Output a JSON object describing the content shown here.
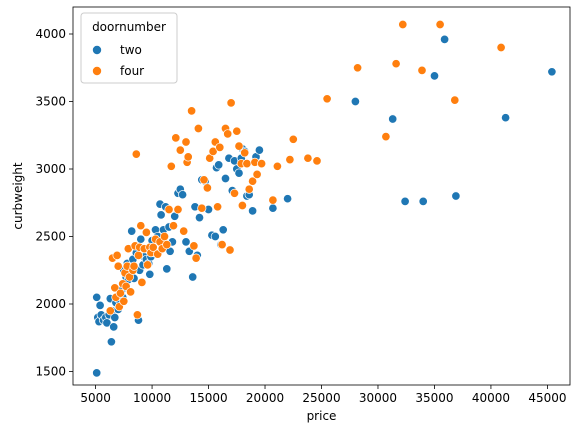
{
  "chart_data": {
    "type": "scatter",
    "xlabel": "price",
    "ylabel": "curbweight",
    "xlim": [
      3000,
      47000
    ],
    "ylim": [
      1400,
      4200
    ],
    "xticks": [
      5000,
      10000,
      15000,
      20000,
      25000,
      30000,
      35000,
      40000,
      45000
    ],
    "yticks": [
      1500,
      2000,
      2500,
      3000,
      3500,
      4000
    ],
    "grid": false,
    "legend": {
      "title": "doornumber",
      "placement": "top-left",
      "entries": [
        {
          "label": "two",
          "color": "#1f77b4"
        },
        {
          "label": "four",
          "color": "#ff7f0e"
        }
      ]
    },
    "series": [
      {
        "name": "two",
        "color": "#1f77b4",
        "points": [
          [
            5100,
            1490
          ],
          [
            5100,
            2050
          ],
          [
            5200,
            1900
          ],
          [
            5300,
            1870
          ],
          [
            5400,
            1990
          ],
          [
            5500,
            1920
          ],
          [
            5700,
            1880
          ],
          [
            5900,
            1900
          ],
          [
            6000,
            1860
          ],
          [
            6200,
            1920
          ],
          [
            6300,
            2040
          ],
          [
            6400,
            1720
          ],
          [
            6500,
            1950
          ],
          [
            6600,
            1830
          ],
          [
            6700,
            1900
          ],
          [
            6800,
            2010
          ],
          [
            7000,
            1960
          ],
          [
            7100,
            2030
          ],
          [
            7300,
            2100
          ],
          [
            7400,
            2050
          ],
          [
            7500,
            2250
          ],
          [
            7700,
            2200
          ],
          [
            7800,
            2300
          ],
          [
            7900,
            2180
          ],
          [
            8000,
            2260
          ],
          [
            8200,
            2540
          ],
          [
            8300,
            2330
          ],
          [
            8400,
            2190
          ],
          [
            8600,
            2380
          ],
          [
            8800,
            1880
          ],
          [
            8900,
            2250
          ],
          [
            9000,
            2480
          ],
          [
            9200,
            2290
          ],
          [
            9300,
            2350
          ],
          [
            9500,
            2330
          ],
          [
            9700,
            2300
          ],
          [
            9800,
            2220
          ],
          [
            9900,
            2350
          ],
          [
            10000,
            2470
          ],
          [
            10200,
            2380
          ],
          [
            10300,
            2550
          ],
          [
            10500,
            2500
          ],
          [
            10700,
            2740
          ],
          [
            10800,
            2660
          ],
          [
            10900,
            2420
          ],
          [
            11000,
            2550
          ],
          [
            11200,
            2720
          ],
          [
            11300,
            2260
          ],
          [
            11500,
            2570
          ],
          [
            11600,
            2390
          ],
          [
            11800,
            2460
          ],
          [
            12000,
            2650
          ],
          [
            12300,
            2820
          ],
          [
            12500,
            2850
          ],
          [
            12700,
            2810
          ],
          [
            13000,
            2460
          ],
          [
            13300,
            2390
          ],
          [
            13600,
            2200
          ],
          [
            13800,
            2720
          ],
          [
            14000,
            2360
          ],
          [
            14200,
            2640
          ],
          [
            14400,
            2920
          ],
          [
            14700,
            2910
          ],
          [
            15000,
            2700
          ],
          [
            15300,
            2510
          ],
          [
            15600,
            2500
          ],
          [
            15700,
            3010
          ],
          [
            15900,
            3030
          ],
          [
            16100,
            2440
          ],
          [
            16300,
            2550
          ],
          [
            16500,
            2930
          ],
          [
            16800,
            3080
          ],
          [
            17100,
            2840
          ],
          [
            17300,
            3060
          ],
          [
            17500,
            3000
          ],
          [
            17700,
            2970
          ],
          [
            17900,
            3080
          ],
          [
            18000,
            3150
          ],
          [
            18200,
            3130
          ],
          [
            18400,
            2800
          ],
          [
            18600,
            2810
          ],
          [
            18900,
            2690
          ],
          [
            19200,
            3090
          ],
          [
            19500,
            3140
          ],
          [
            20700,
            2710
          ],
          [
            22000,
            2780
          ],
          [
            28000,
            3500
          ],
          [
            31300,
            3370
          ],
          [
            32400,
            2760
          ],
          [
            34000,
            2760
          ],
          [
            35000,
            3690
          ],
          [
            35900,
            3960
          ],
          [
            36900,
            2800
          ],
          [
            41300,
            3380
          ],
          [
            45400,
            3720
          ]
        ]
      },
      {
        "name": "four",
        "color": "#ff7f0e",
        "points": [
          [
            6300,
            1950
          ],
          [
            6500,
            2340
          ],
          [
            6700,
            2120
          ],
          [
            6800,
            2050
          ],
          [
            6900,
            2360
          ],
          [
            7000,
            2280
          ],
          [
            7100,
            1980
          ],
          [
            7200,
            2080
          ],
          [
            7400,
            2150
          ],
          [
            7500,
            2020
          ],
          [
            7600,
            2230
          ],
          [
            7700,
            2130
          ],
          [
            7800,
            2280
          ],
          [
            7900,
            2410
          ],
          [
            8000,
            2200
          ],
          [
            8100,
            2090
          ],
          [
            8300,
            2250
          ],
          [
            8400,
            2280
          ],
          [
            8500,
            2430
          ],
          [
            8600,
            3110
          ],
          [
            8700,
            1920
          ],
          [
            8800,
            2360
          ],
          [
            8900,
            2420
          ],
          [
            9000,
            2580
          ],
          [
            9100,
            2160
          ],
          [
            9300,
            2410
          ],
          [
            9500,
            2530
          ],
          [
            9600,
            2290
          ],
          [
            9800,
            2420
          ],
          [
            9900,
            2380
          ],
          [
            10100,
            2420
          ],
          [
            10300,
            2480
          ],
          [
            10500,
            2370
          ],
          [
            10700,
            2460
          ],
          [
            10900,
            2410
          ],
          [
            11100,
            2500
          ],
          [
            11300,
            2440
          ],
          [
            11500,
            2700
          ],
          [
            11700,
            3020
          ],
          [
            11900,
            2580
          ],
          [
            12100,
            3230
          ],
          [
            12300,
            2700
          ],
          [
            12500,
            3140
          ],
          [
            12800,
            2540
          ],
          [
            13000,
            3200
          ],
          [
            13100,
            3050
          ],
          [
            13200,
            3090
          ],
          [
            13500,
            3430
          ],
          [
            13700,
            2430
          ],
          [
            13900,
            2340
          ],
          [
            14100,
            3300
          ],
          [
            14400,
            2710
          ],
          [
            14600,
            2920
          ],
          [
            14900,
            2860
          ],
          [
            15100,
            3080
          ],
          [
            15400,
            3130
          ],
          [
            15600,
            3200
          ],
          [
            15800,
            2720
          ],
          [
            16000,
            3160
          ],
          [
            16200,
            2440
          ],
          [
            16500,
            3300
          ],
          [
            16700,
            3260
          ],
          [
            16900,
            2400
          ],
          [
            17000,
            3490
          ],
          [
            17300,
            2820
          ],
          [
            17500,
            3280
          ],
          [
            17700,
            3170
          ],
          [
            17900,
            3040
          ],
          [
            18000,
            2730
          ],
          [
            18200,
            3120
          ],
          [
            18400,
            3040
          ],
          [
            18600,
            2850
          ],
          [
            18900,
            2910
          ],
          [
            19100,
            3050
          ],
          [
            19300,
            2960
          ],
          [
            19700,
            3040
          ],
          [
            20700,
            2770
          ],
          [
            21100,
            3020
          ],
          [
            22200,
            3070
          ],
          [
            22500,
            3220
          ],
          [
            23800,
            3080
          ],
          [
            24600,
            3060
          ],
          [
            25500,
            3520
          ],
          [
            28200,
            3750
          ],
          [
            30700,
            3240
          ],
          [
            31600,
            3780
          ],
          [
            32200,
            4070
          ],
          [
            33900,
            3730
          ],
          [
            35500,
            4070
          ],
          [
            36800,
            3510
          ],
          [
            40900,
            3900
          ]
        ]
      }
    ]
  }
}
